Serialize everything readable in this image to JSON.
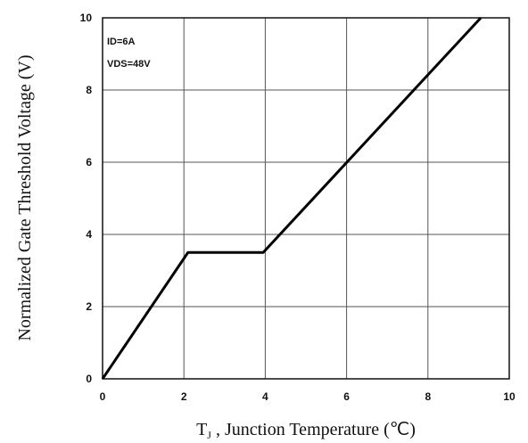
{
  "chart_data": {
    "type": "line",
    "title": "",
    "xlabel_prefix": "T",
    "xlabel_subscript": "J",
    "xlabel_rest": " , Junction Temperature (℃)",
    "ylabel": "Normalized Gate Threshold Voltage (V)",
    "xlim": [
      0,
      10
    ],
    "ylim": [
      0,
      10
    ],
    "x_ticks": [
      "0",
      "2",
      "4",
      "6",
      "8",
      "10"
    ],
    "y_ticks": [
      "0",
      "2",
      "4",
      "6",
      "8",
      "10"
    ],
    "grid": true,
    "annotations": [
      "ID=6A",
      "VDS=48V"
    ],
    "series": [
      {
        "x": [
          0,
          2.1,
          3.95,
          9.3
        ],
        "y": [
          0,
          3.5,
          3.5,
          10
        ]
      }
    ]
  }
}
